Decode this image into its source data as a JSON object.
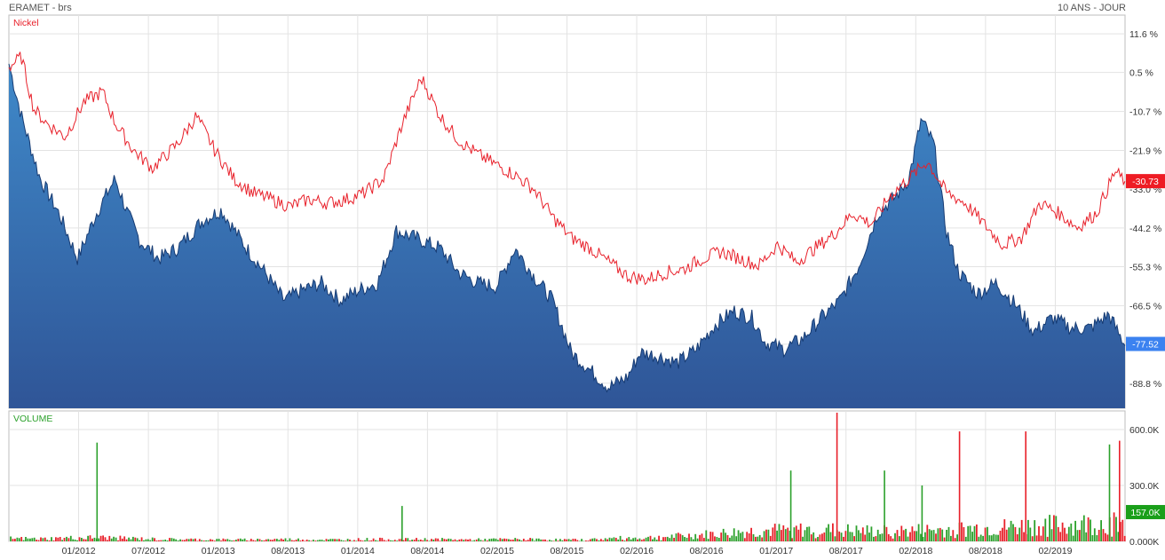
{
  "header": {
    "title": "ERAMET - brs",
    "range": "10 ANS - JOUR"
  },
  "chart_data": [
    {
      "type": "area",
      "panel": "price",
      "x_ticks": [
        "01/2012",
        "07/2012",
        "01/2013",
        "08/2013",
        "01/2014",
        "08/2014",
        "02/2015",
        "08/2015",
        "02/2016",
        "08/2016",
        "01/2017",
        "08/2017",
        "02/2018",
        "08/2018",
        "02/2019"
      ],
      "y_ticks": [
        "11.6 %",
        "0.5 %",
        "-10.7 %",
        "-21.9 %",
        "-33.0 %",
        "-44.2 %",
        "-55.3 %",
        "-66.5 %",
        "-77.6 %",
        "-88.8 %"
      ],
      "ylim": [
        -96,
        17
      ],
      "legend": "Nickel",
      "series": [
        {
          "name": "ERAMET",
          "color": "#2c67b6",
          "x": [
            2011.0,
            2011.1,
            2011.25,
            2011.4,
            2011.55,
            2011.7,
            2011.85,
            2011.95,
            2012.05,
            2012.2,
            2012.35,
            2012.55,
            2012.7,
            2012.9,
            2013.05,
            2013.2,
            2013.35,
            2013.5,
            2013.65,
            2013.8,
            2013.95,
            2014.1,
            2014.25,
            2014.45,
            2014.6,
            2014.75,
            2014.9,
            2015.05,
            2015.2,
            2015.35,
            2015.5,
            2015.65,
            2015.8,
            2015.95,
            2016.05,
            2016.2,
            2016.35,
            2016.5,
            2016.65,
            2016.8,
            2016.95,
            2017.05,
            2017.2,
            2017.35,
            2017.5,
            2017.65,
            2017.8,
            2017.95,
            2018.1,
            2018.2,
            2018.3,
            2018.4,
            2018.5,
            2018.6,
            2018.75,
            2018.9,
            2019.05,
            2019.2,
            2019.35,
            2019.5,
            2019.65,
            2019.8,
            2019.93
          ],
          "values": [
            3,
            -12,
            -30,
            -40,
            -53,
            -40,
            -30,
            -40,
            -48,
            -53,
            -50,
            -42,
            -39,
            -50,
            -57,
            -65,
            -62,
            -60,
            -65,
            -62,
            -60,
            -45,
            -47,
            -50,
            -57,
            -60,
            -61,
            -50,
            -58,
            -65,
            -80,
            -85,
            -90,
            -87,
            -80,
            -81,
            -83,
            -79,
            -72,
            -68,
            -70,
            -77,
            -79,
            -76,
            -70,
            -65,
            -55,
            -40,
            -35,
            -30,
            -13,
            -20,
            -45,
            -57,
            -63,
            -60,
            -66,
            -74,
            -70,
            -73,
            -73,
            -69,
            -78
          ]
        },
        {
          "name": "Nickel",
          "color": "#e8202a",
          "x": [
            2011.0,
            2011.1,
            2011.2,
            2011.3,
            2011.45,
            2011.6,
            2011.75,
            2011.85,
            2012.0,
            2012.15,
            2012.35,
            2012.5,
            2012.65,
            2012.8,
            2012.95,
            2013.1,
            2013.25,
            2013.4,
            2013.55,
            2013.7,
            2013.85,
            2014.0,
            2014.15,
            2014.3,
            2014.45,
            2014.6,
            2014.75,
            2014.9,
            2015.05,
            2015.2,
            2015.35,
            2015.5,
            2015.65,
            2015.8,
            2015.95,
            2016.1,
            2016.25,
            2016.4,
            2016.55,
            2016.7,
            2016.85,
            2017.0,
            2017.15,
            2017.3,
            2017.45,
            2017.6,
            2017.75,
            2017.9,
            2018.05,
            2018.2,
            2018.35,
            2018.5,
            2018.65,
            2018.8,
            2018.95,
            2019.1,
            2019.25,
            2019.4,
            2019.55,
            2019.7,
            2019.85,
            2019.93
          ],
          "values": [
            2,
            5,
            -10,
            -14,
            -18,
            -8,
            -5,
            -14,
            -22,
            -27,
            -20,
            -12,
            -22,
            -30,
            -34,
            -36,
            -38,
            -36,
            -37,
            -36,
            -34,
            -30,
            -14,
            -1,
            -12,
            -19,
            -23,
            -26,
            -29,
            -33,
            -41,
            -47,
            -50,
            -54,
            -58,
            -59,
            -57,
            -56,
            -53,
            -51,
            -53,
            -55,
            -49,
            -54,
            -50,
            -46,
            -40,
            -43,
            -35,
            -30,
            -25,
            -34,
            -37,
            -43,
            -49,
            -47,
            -37,
            -40,
            -44,
            -40,
            -28,
            -30.73
          ]
        }
      ],
      "last_labels": {
        "nickel": "-30.73",
        "eramet": "-77.52"
      }
    },
    {
      "type": "bar",
      "panel": "volume",
      "title": "VOLUME",
      "y_ticks": [
        "600.0K",
        "300.0K",
        "0.000K"
      ],
      "ylim": [
        0,
        700
      ],
      "last_label": "157.0K",
      "colors": {
        "up": "#2ca12c",
        "down": "#e8202a"
      },
      "baseline_k": [
        14,
        12,
        16,
        18,
        14,
        10,
        9,
        8,
        8,
        10,
        8,
        8,
        10,
        9,
        10,
        8,
        9,
        10,
        8,
        7,
        14,
        16,
        22,
        30,
        40,
        48,
        50,
        52,
        46,
        44,
        48,
        52,
        58,
        62,
        70,
        74,
        78,
        84
      ],
      "spikes": [
        {
          "x": 2011.7,
          "value": 530,
          "color": "green"
        },
        {
          "x": 2014.14,
          "value": 190,
          "color": "green"
        },
        {
          "x": 2017.25,
          "value": 380,
          "color": "green"
        },
        {
          "x": 2017.62,
          "value": 770,
          "color": "red"
        },
        {
          "x": 2018.0,
          "value": 380,
          "color": "green"
        },
        {
          "x": 2018.3,
          "value": 300,
          "color": "green"
        },
        {
          "x": 2018.6,
          "value": 590,
          "color": "red"
        },
        {
          "x": 2019.13,
          "value": 590,
          "color": "red"
        },
        {
          "x": 2019.8,
          "value": 520,
          "color": "green"
        },
        {
          "x": 2019.88,
          "value": 540,
          "color": "red"
        }
      ]
    }
  ],
  "colors": {
    "label_red": "#ee1c24",
    "label_blue": "#3b82f0",
    "label_green": "#1a9f1a"
  }
}
